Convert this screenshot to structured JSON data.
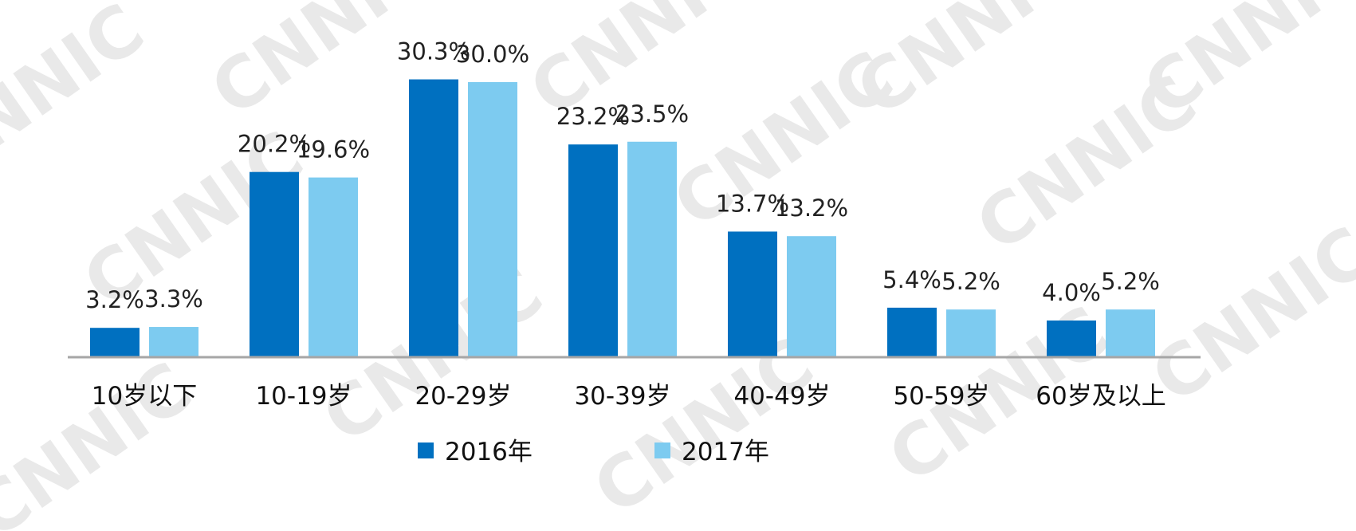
{
  "chart_data": {
    "type": "bar",
    "categories": [
      "10岁以下",
      "10-19岁",
      "20-29岁",
      "30-39岁",
      "40-49岁",
      "50-59岁",
      "60岁及以上"
    ],
    "series": [
      {
        "name": "2016年",
        "values": [
          3.2,
          20.2,
          30.3,
          23.2,
          13.7,
          5.4,
          4.0
        ],
        "labels": [
          "3.2%",
          "20.2%",
          "30.3%",
          "23.2%",
          "13.7%",
          "5.4%",
          "4.0%"
        ],
        "color": "#0070c0"
      },
      {
        "name": "2017年",
        "values": [
          3.3,
          19.6,
          30.0,
          23.5,
          13.2,
          5.2,
          5.2
        ],
        "labels": [
          "3.3%",
          "19.6%",
          "30.0%",
          "23.5%",
          "13.2%",
          "5.2%",
          "5.2%"
        ],
        "color": "#7dcbf0"
      }
    ],
    "ylim": [
      0,
      35
    ],
    "grid": false,
    "legend_position": "bottom",
    "axis_color": "#a6a6a6"
  },
  "watermark": {
    "text": "CNNIC",
    "color": "#e9e9e9"
  }
}
